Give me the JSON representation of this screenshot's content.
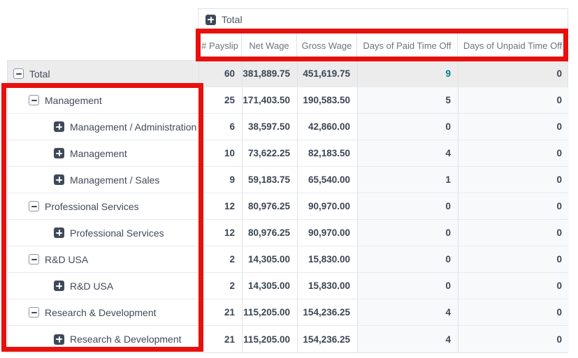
{
  "view": "payroll-pivot-table",
  "colors": {
    "annotation_red": "#e8100c",
    "accent_teal": "#017e84",
    "total_row_bg": "#ececec",
    "days_column_bg": "#f8f9fa",
    "border": "#dee2e6",
    "icon_dark": "#3e4a5b",
    "header_text": "#6a7382",
    "body_text": "#3a4554"
  },
  "pivot": {
    "column_group": {
      "label": "Total",
      "state": "collapsed",
      "icon": "plus-square-icon"
    },
    "measures": [
      "# Payslip",
      "Net Wage",
      "Gross Wage",
      "Days of Paid Time Off",
      "Days of Unpaid Time Off"
    ],
    "rows": [
      {
        "label": "Total",
        "state": "expanded",
        "level": 0,
        "is_total": true,
        "accent_cell": 3,
        "values": [
          "60",
          "381,889.75",
          "451,619.75",
          "9",
          "0"
        ]
      },
      {
        "label": "Management",
        "state": "expanded",
        "level": 1,
        "is_total": false,
        "accent_cell": -1,
        "values": [
          "25",
          "171,403.50",
          "190,583.50",
          "5",
          "0"
        ]
      },
      {
        "label": "Management / Administration",
        "state": "collapsed",
        "level": 2,
        "is_total": false,
        "accent_cell": -1,
        "values": [
          "6",
          "38,597.50",
          "42,860.00",
          "0",
          "0"
        ]
      },
      {
        "label": "Management",
        "state": "collapsed",
        "level": 2,
        "is_total": false,
        "accent_cell": -1,
        "values": [
          "10",
          "73,622.25",
          "82,183.50",
          "4",
          "0"
        ]
      },
      {
        "label": "Management / Sales",
        "state": "collapsed",
        "level": 2,
        "is_total": false,
        "accent_cell": -1,
        "values": [
          "9",
          "59,183.75",
          "65,540.00",
          "1",
          "0"
        ]
      },
      {
        "label": "Professional Services",
        "state": "expanded",
        "level": 1,
        "is_total": false,
        "accent_cell": -1,
        "values": [
          "12",
          "80,976.25",
          "90,970.00",
          "0",
          "0"
        ]
      },
      {
        "label": "Professional Services",
        "state": "collapsed",
        "level": 2,
        "is_total": false,
        "accent_cell": -1,
        "values": [
          "12",
          "80,976.25",
          "90,970.00",
          "0",
          "0"
        ]
      },
      {
        "label": "R&D USA",
        "state": "expanded",
        "level": 1,
        "is_total": false,
        "accent_cell": -1,
        "values": [
          "2",
          "14,305.00",
          "15,830.00",
          "0",
          "0"
        ]
      },
      {
        "label": "R&D USA",
        "state": "collapsed",
        "level": 2,
        "is_total": false,
        "accent_cell": -1,
        "values": [
          "2",
          "14,305.00",
          "15,830.00",
          "0",
          "0"
        ]
      },
      {
        "label": "Research & Development",
        "state": "expanded",
        "level": 1,
        "is_total": false,
        "accent_cell": -1,
        "values": [
          "21",
          "115,205.00",
          "154,236.25",
          "4",
          "0"
        ]
      },
      {
        "label": "Research & Development",
        "state": "collapsed",
        "level": 2,
        "is_total": false,
        "accent_cell": -1,
        "values": [
          "21",
          "115,205.00",
          "154,236.25",
          "4",
          "0"
        ]
      }
    ]
  },
  "annotations": [
    {
      "name": "column-headers-highlight",
      "shape": "rectangle",
      "color": "#e8100c",
      "target": "measure header row"
    },
    {
      "name": "row-headers-highlight",
      "shape": "rectangle",
      "color": "#e8100c",
      "target": "department row headers"
    }
  ]
}
